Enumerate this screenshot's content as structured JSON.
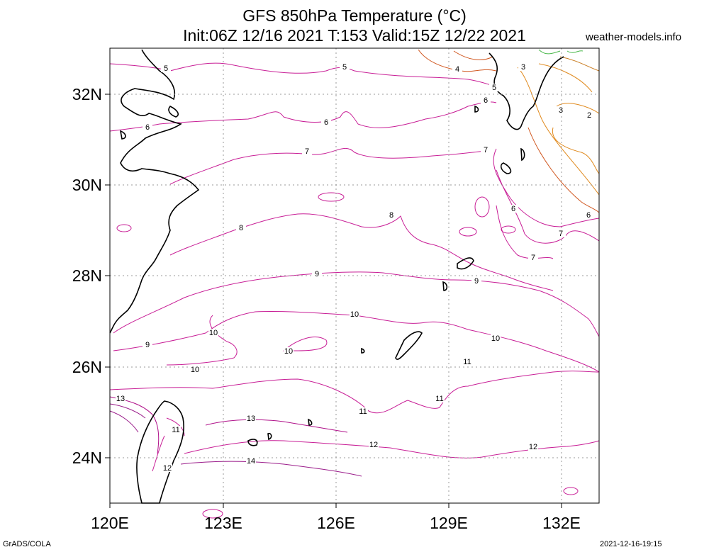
{
  "title_line1": "GFS 850hPa Temperature (°C)",
  "title_line2": "Init:06Z 12/16 2021 T:153 Valid:15Z 12/22 2021",
  "site": "weather-models.info",
  "footer_left": "GrADS/COLA",
  "footer_right": "2021-12-16-19:15",
  "x_ticks": [
    "120E",
    "123E",
    "126E",
    "129E",
    "132E"
  ],
  "y_ticks": [
    "32N",
    "30N",
    "28N",
    "26N",
    "24N"
  ],
  "contour_labels": [
    "2",
    "3",
    "3",
    "4",
    "5",
    "5",
    "5",
    "6",
    "6",
    "6",
    "6",
    "6",
    "7",
    "7",
    "7",
    "7",
    "7",
    "8",
    "8",
    "9",
    "9",
    "9",
    "10",
    "10",
    "10",
    "10",
    "10",
    "11",
    "11",
    "11",
    "11",
    "12",
    "12",
    "12",
    "13",
    "13",
    "14"
  ],
  "colors": {
    "contour_cold": "#e08a1e",
    "contour_mid": "#c81e96",
    "contour_warm": "#9b1d8b",
    "coast": "#000000",
    "grid": "#999999"
  }
}
